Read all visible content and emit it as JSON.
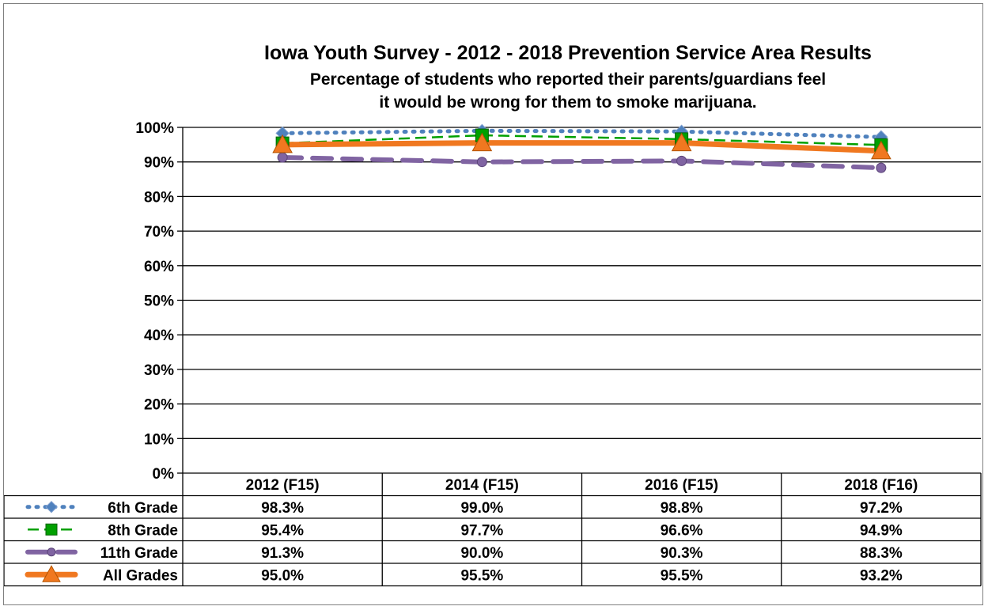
{
  "chart_data": {
    "type": "line",
    "title": "Iowa Youth Survey - 2012 - 2018 Prevention Service Area Results",
    "subtitle_lines": [
      "Percentage of students who reported their parents/guardians  feel",
      "it would be wrong for them to smoke marijuana."
    ],
    "categories": [
      "2012 (F15)",
      "2014 (F15)",
      "2016 (F15)",
      "2018 (F16)"
    ],
    "ylim": [
      0,
      100
    ],
    "yticks": [
      0,
      10,
      20,
      30,
      40,
      50,
      60,
      70,
      80,
      90,
      100
    ],
    "ytick_labels": [
      "0%",
      "10%",
      "20%",
      "30%",
      "40%",
      "50%",
      "60%",
      "70%",
      "80%",
      "90%",
      "100%"
    ],
    "grid": true,
    "legend": "data-table",
    "series": [
      {
        "name": "6th Grade",
        "values": [
          98.3,
          99.0,
          98.8,
          97.2
        ],
        "labels": [
          "98.3%",
          "99.0%",
          "98.8%",
          "97.2%"
        ],
        "color": "#4f81bd",
        "marker": "diamond",
        "line_style": "dotted"
      },
      {
        "name": "8th Grade",
        "values": [
          95.4,
          97.7,
          96.6,
          94.9
        ],
        "labels": [
          "95.4%",
          "97.7%",
          "96.6%",
          "94.9%"
        ],
        "color": "#00a000",
        "marker": "square",
        "line_style": "dashed"
      },
      {
        "name": "11th Grade",
        "values": [
          91.3,
          90.0,
          90.3,
          88.3
        ],
        "labels": [
          "91.3%",
          "90.0%",
          "90.3%",
          "88.3%"
        ],
        "color": "#8064a2",
        "marker": "circle",
        "line_style": "long-dash"
      },
      {
        "name": "All Grades",
        "values": [
          95.0,
          95.5,
          95.5,
          93.2
        ],
        "labels": [
          "95.0%",
          "95.5%",
          "95.5%",
          "93.2%"
        ],
        "color": "#f07820",
        "marker": "triangle",
        "line_style": "solid"
      }
    ]
  }
}
